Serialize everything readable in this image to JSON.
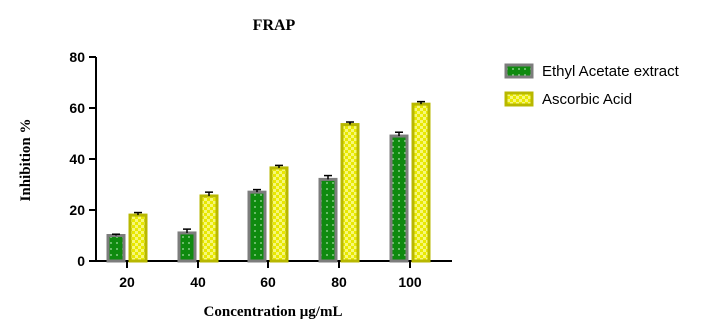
{
  "chart_data": {
    "type": "bar",
    "title": "FRAP",
    "xlabel": "Concentration μg/mL",
    "ylabel": "Inhibition %",
    "categories": [
      "20",
      "40",
      "60",
      "80",
      "100"
    ],
    "ylim": [
      0,
      80
    ],
    "yticks": [
      "0",
      "20",
      "40",
      "60",
      "80"
    ],
    "grid": false,
    "legend_position": "top-right",
    "series": [
      {
        "name": "Ethyl Acetate extract",
        "values": [
          10,
          11,
          27,
          32,
          49
        ],
        "errors": [
          0.5,
          1.5,
          1,
          1.5,
          1.5
        ],
        "fill_color": "#0f8a0f",
        "border_color": "#7d7d7d",
        "pattern": "dots"
      },
      {
        "name": "Ascorbic Acid",
        "values": [
          18,
          25.5,
          36.5,
          53.5,
          61.5
        ],
        "errors": [
          1,
          1.5,
          1,
          1,
          1
        ],
        "fill_color": "#e8e800",
        "border_color": "#b8b800",
        "pattern": "checker"
      }
    ]
  }
}
